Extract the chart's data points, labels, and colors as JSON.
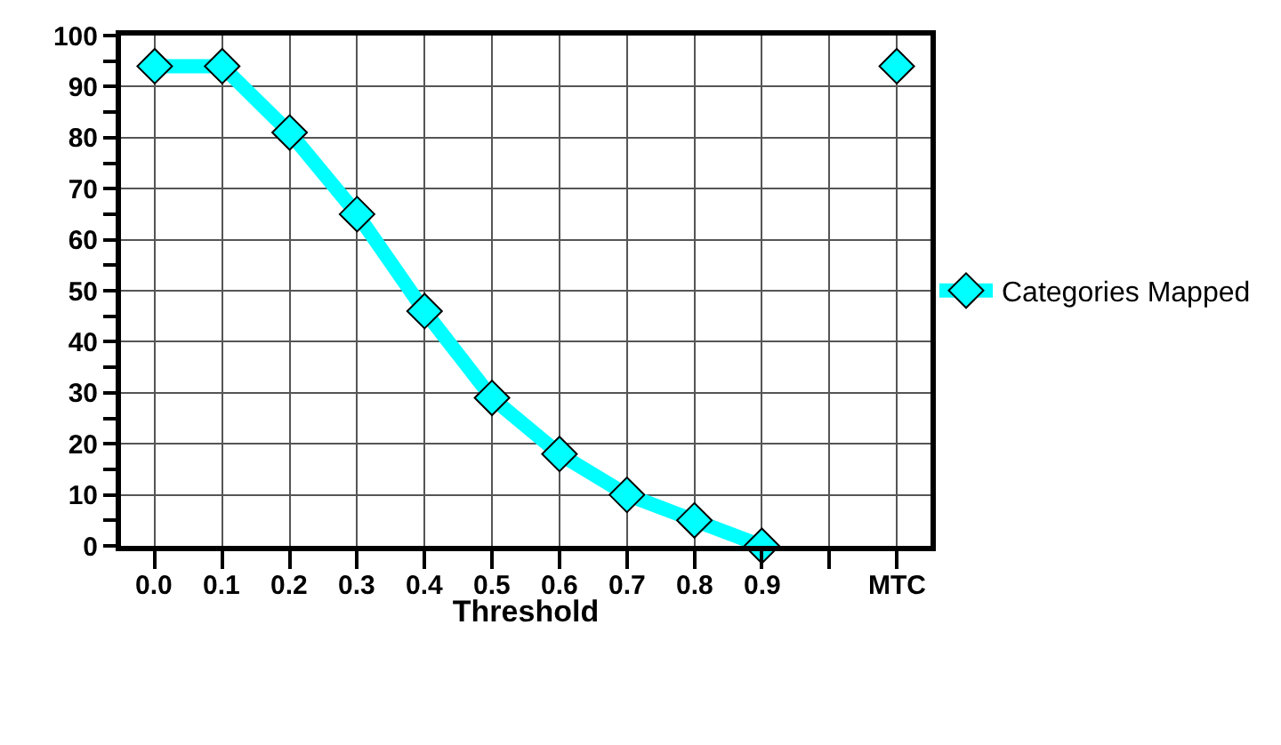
{
  "chart_data": {
    "type": "line",
    "xlabel": "Threshold",
    "categories": [
      "0.0",
      "0.1",
      "0.2",
      "0.3",
      "0.4",
      "0.5",
      "0.6",
      "0.7",
      "0.8",
      "0.9",
      null,
      "MTC"
    ],
    "series": [
      {
        "name": "Categories Mapped",
        "color": "#00ffff",
        "values": [
          94,
          94,
          81,
          65,
          46,
          29,
          18,
          10,
          5,
          0,
          null,
          94
        ]
      }
    ],
    "ylim": [
      0,
      100
    ],
    "yticks": [
      0,
      {
        "value": 5,
        "label": null
      },
      10,
      {
        "value": 15,
        "label": null
      },
      20,
      {
        "value": 25,
        "label": null
      },
      30,
      {
        "value": 35,
        "label": null
      },
      40,
      {
        "value": 45,
        "label": null
      },
      50,
      {
        "value": 55,
        "label": null
      },
      60,
      {
        "value": 65,
        "label": null
      },
      70,
      {
        "value": 75,
        "label": null
      },
      80,
      {
        "value": 85,
        "label": null
      },
      90,
      {
        "value": 95,
        "label": null
      },
      100
    ],
    "grid": true,
    "legend": "right",
    "marker": "diamond",
    "line_style": "solid"
  }
}
